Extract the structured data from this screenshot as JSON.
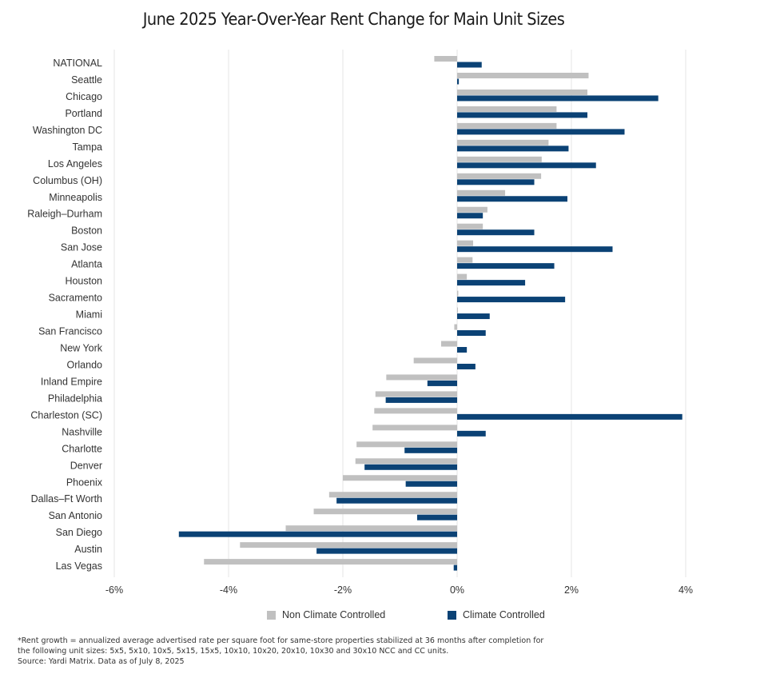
{
  "colors": {
    "non_climate": "#c0c0c0",
    "climate": "#0b4275",
    "grid": "#e6e6e6"
  },
  "legend": {
    "non_climate_label": "Non Climate Controlled",
    "climate_label": "Climate Controlled"
  },
  "footnote": {
    "line1": "*Rent growth = annualized average advertised rate per square foot for same-store properties stabilized at 36 months after completion for",
    "line2": "the following unit sizes: 5x5, 5x10, 10x5, 5x15, 15x5, 10x10, 10x20, 20x10, 10x30 and 30x10 NCC and CC units.",
    "line3": "Source: Yardi Matrix. Data as of July 8, 2025"
  },
  "chart_data": {
    "type": "bar",
    "orientation": "horizontal",
    "title": "June 2025 Year-Over-Year Rent Change for Main Unit Sizes",
    "xlim": [
      -6,
      4
    ],
    "x_ticks": [
      -6,
      -4,
      -2,
      0,
      2,
      4
    ],
    "x_tick_labels": [
      "-6%",
      "-4%",
      "-2%",
      "0%",
      "2%",
      "4%"
    ],
    "grid": "vertical",
    "legend_position": "bottom",
    "categories": [
      "NATIONAL",
      "Seattle",
      "Chicago",
      "Portland",
      "Washington DC",
      "Tampa",
      "Los Angeles",
      "Columbus (OH)",
      "Minneapolis",
      "Raleigh–Durham",
      "Boston",
      "San Jose",
      "Atlanta",
      "Houston",
      "Sacramento",
      "Miami",
      "San Francisco",
      "New York",
      "Orlando",
      "Inland Empire",
      "Philadelphia",
      "Charleston (SC)",
      "Nashville",
      "Charlotte",
      "Denver",
      "Phoenix",
      "Dallas–Ft Worth",
      "San Antonio",
      "San Diego",
      "Austin",
      "Las Vegas"
    ],
    "series": [
      {
        "name": "Non Climate Controlled",
        "values": [
          -0.4,
          2.3,
          2.28,
          1.74,
          1.74,
          1.6,
          1.48,
          1.47,
          0.84,
          0.53,
          0.45,
          0.28,
          0.27,
          0.17,
          0.02,
          0.01,
          -0.05,
          -0.28,
          -0.76,
          -1.24,
          -1.43,
          -1.45,
          -1.48,
          -1.76,
          -1.78,
          -2.0,
          -2.24,
          -2.51,
          -3.0,
          -3.8,
          -4.43
        ]
      },
      {
        "name": "Climate Controlled",
        "values": [
          0.43,
          0.03,
          3.52,
          2.28,
          2.93,
          1.95,
          2.43,
          1.35,
          1.93,
          0.45,
          1.35,
          2.72,
          1.7,
          1.19,
          1.89,
          0.57,
          0.5,
          0.17,
          0.32,
          -0.52,
          -1.25,
          3.94,
          0.5,
          -0.92,
          -1.62,
          -0.9,
          -2.11,
          -0.7,
          -4.87,
          -2.46,
          -0.06
        ]
      }
    ]
  }
}
